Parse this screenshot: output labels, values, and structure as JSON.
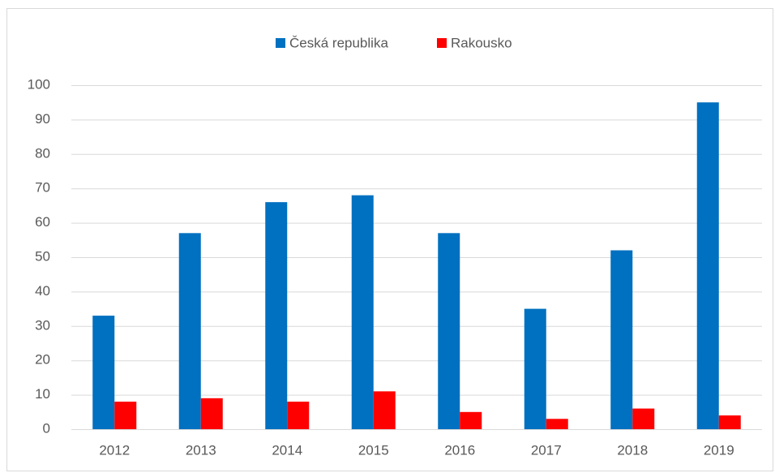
{
  "chart_data": {
    "type": "bar",
    "categories": [
      "2012",
      "2013",
      "2014",
      "2015",
      "2016",
      "2017",
      "2018",
      "2019"
    ],
    "series": [
      {
        "name": "Česká republika",
        "color": "#0070c0",
        "values": [
          33,
          57,
          66,
          68,
          57,
          35,
          52,
          95
        ]
      },
      {
        "name": "Rakousko",
        "color": "#ff0000",
        "values": [
          8,
          9,
          8,
          11,
          5,
          3,
          6,
          4
        ]
      }
    ],
    "ylim": [
      0,
      100
    ],
    "yticks": [
      0,
      10,
      20,
      30,
      40,
      50,
      60,
      70,
      80,
      90,
      100
    ],
    "grid": true,
    "legend": "top"
  }
}
